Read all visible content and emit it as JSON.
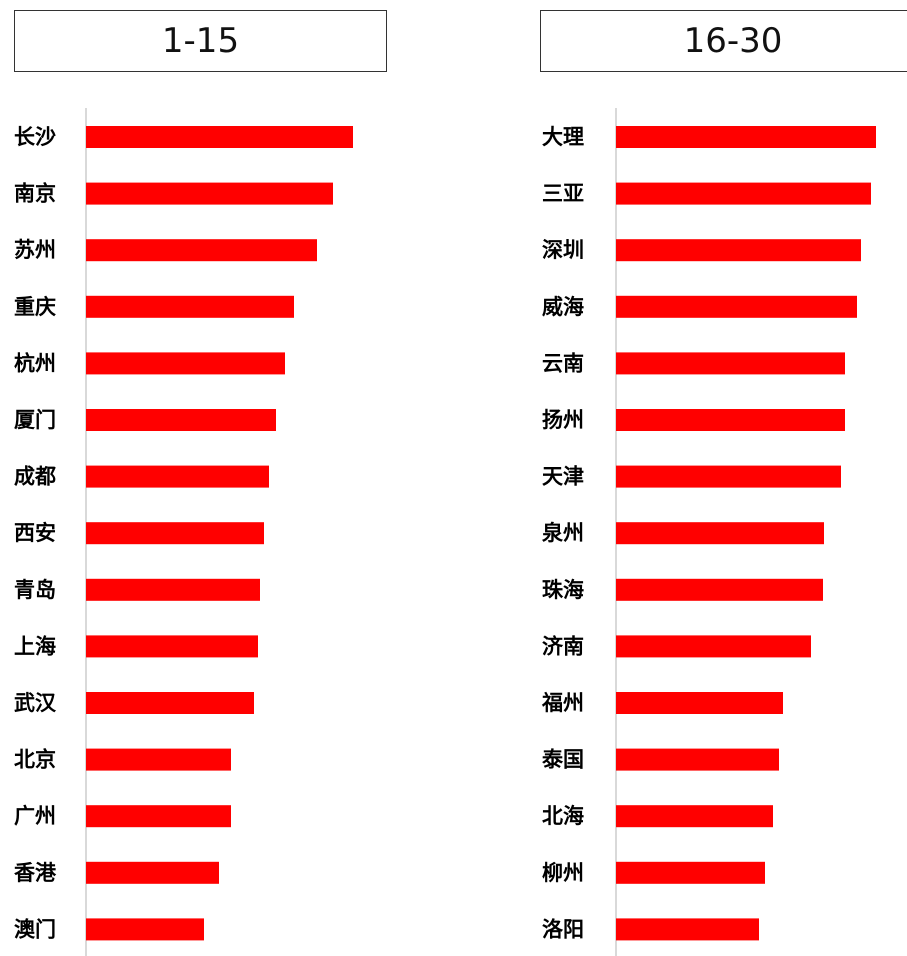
{
  "colors": {
    "bar": "#ff0000",
    "axis": "#d9d9d9"
  },
  "chart_data": [
    {
      "type": "bar",
      "orientation": "horizontal",
      "title": "1-15",
      "categories": [
        "长沙",
        "南京",
        "苏州",
        "重庆",
        "杭州",
        "厦门",
        "成都",
        "西安",
        "青岛",
        "上海",
        "武汉",
        "北京",
        "广州",
        "香港",
        "澳门"
      ],
      "values": [
        267,
        247,
        231,
        208,
        199,
        190,
        183,
        178,
        174,
        172,
        168,
        145,
        145,
        133,
        118
      ],
      "xlim": [
        0,
        320
      ],
      "grid": false,
      "legend": "none"
    },
    {
      "type": "bar",
      "orientation": "horizontal",
      "title": "16-30",
      "categories": [
        "大理",
        "三亚",
        "深圳",
        "威海",
        "云南",
        "扬州",
        "天津",
        "泉州",
        "珠海",
        "济南",
        "福州",
        "泰国",
        "北海",
        "柳州",
        "洛阳"
      ],
      "values": [
        260,
        255,
        245,
        241,
        229,
        229,
        225,
        208,
        207,
        195,
        167,
        163,
        157,
        149,
        143
      ],
      "xlim": [
        0,
        320
      ],
      "grid": false,
      "legend": "none"
    }
  ]
}
